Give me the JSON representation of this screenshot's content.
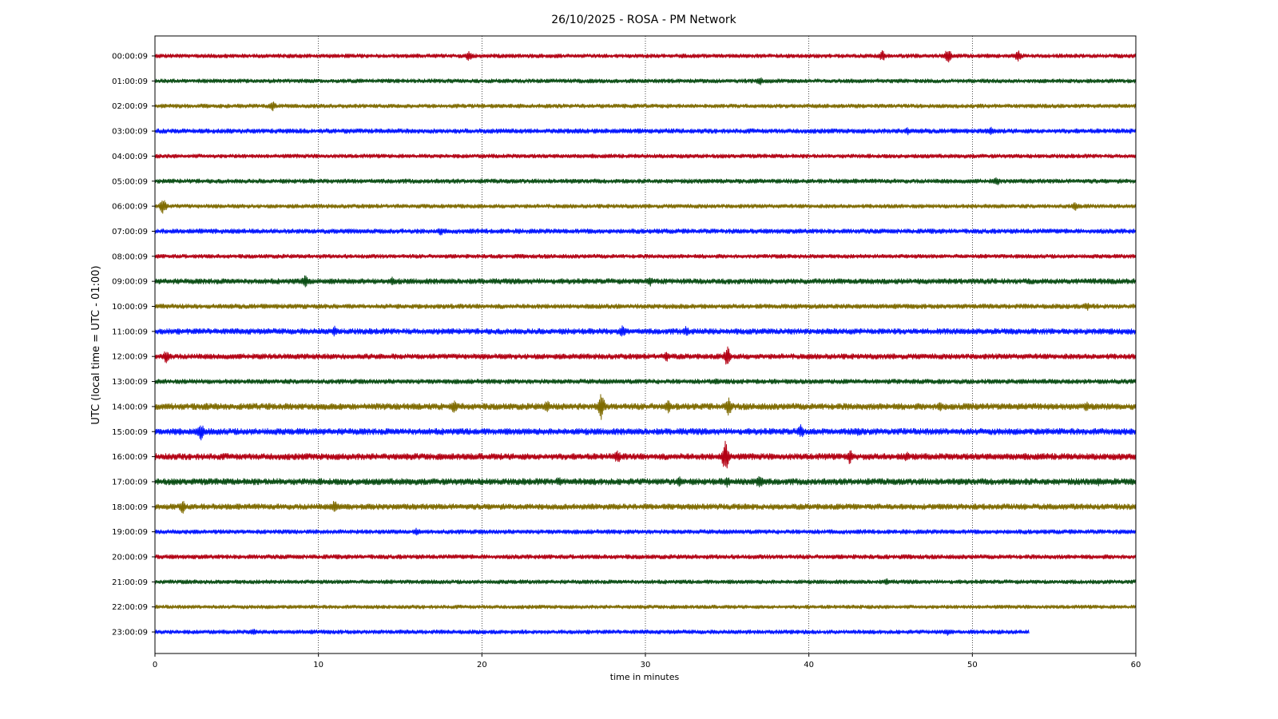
{
  "chart_data": {
    "type": "line",
    "title": "26/10/2025 - ROSA - PM Network",
    "xlabel": "time in minutes",
    "ylabel": "UTC (local time = UTC - 01:00)",
    "xlim": [
      0,
      60
    ],
    "x_ticks": [
      "0",
      "10",
      "20",
      "30",
      "40",
      "50",
      "60"
    ],
    "grid": "vertical dotted lines at each 10 minutes",
    "colors": [
      "#b30013",
      "#0a4d14",
      "#7f6b00",
      "#0014ff"
    ],
    "series": [
      {
        "name": "00:00:09",
        "color": "#b30013",
        "end_minute": 60,
        "amplitude": 0.13,
        "events": [
          [
            19.2,
            0.35
          ],
          [
            44.5,
            0.4
          ],
          [
            48.5,
            0.55
          ],
          [
            52.8,
            0.4
          ]
        ]
      },
      {
        "name": "01:00:09",
        "color": "#0a4d14",
        "end_minute": 60,
        "amplitude": 0.13,
        "events": [
          [
            37.0,
            0.3
          ]
        ]
      },
      {
        "name": "02:00:09",
        "color": "#7f6b00",
        "end_minute": 60,
        "amplitude": 0.13,
        "events": [
          [
            7.2,
            0.35
          ]
        ]
      },
      {
        "name": "03:00:09",
        "color": "#0014ff",
        "end_minute": 60,
        "amplitude": 0.15,
        "events": [
          [
            46.0,
            0.3
          ],
          [
            51.2,
            0.3
          ]
        ]
      },
      {
        "name": "04:00:09",
        "color": "#b30013",
        "end_minute": 60,
        "amplitude": 0.13,
        "events": []
      },
      {
        "name": "05:00:09",
        "color": "#0a4d14",
        "end_minute": 60,
        "amplitude": 0.14,
        "events": [
          [
            51.5,
            0.3
          ]
        ]
      },
      {
        "name": "06:00:09",
        "color": "#7f6b00",
        "end_minute": 60,
        "amplitude": 0.13,
        "events": [
          [
            0.5,
            0.55
          ],
          [
            56.3,
            0.3
          ]
        ]
      },
      {
        "name": "07:00:09",
        "color": "#0014ff",
        "end_minute": 60,
        "amplitude": 0.15,
        "events": [
          [
            17.5,
            0.3
          ]
        ]
      },
      {
        "name": "08:00:09",
        "color": "#b30013",
        "end_minute": 60,
        "amplitude": 0.13,
        "events": []
      },
      {
        "name": "09:00:09",
        "color": "#0a4d14",
        "end_minute": 60,
        "amplitude": 0.17,
        "events": [
          [
            9.2,
            0.45
          ],
          [
            14.5,
            0.3
          ],
          [
            30.3,
            0.35
          ]
        ]
      },
      {
        "name": "10:00:09",
        "color": "#7f6b00",
        "end_minute": 60,
        "amplitude": 0.15,
        "events": [
          [
            57.0,
            0.3
          ]
        ]
      },
      {
        "name": "11:00:09",
        "color": "#0014ff",
        "end_minute": 60,
        "amplitude": 0.18,
        "events": [
          [
            11.0,
            0.35
          ],
          [
            28.6,
            0.4
          ],
          [
            32.5,
            0.35
          ]
        ]
      },
      {
        "name": "12:00:09",
        "color": "#b30013",
        "end_minute": 60,
        "amplitude": 0.17,
        "events": [
          [
            0.7,
            0.45
          ],
          [
            31.3,
            0.35
          ],
          [
            35.0,
            0.7
          ]
        ]
      },
      {
        "name": "13:00:09",
        "color": "#0a4d14",
        "end_minute": 60,
        "amplitude": 0.15,
        "events": [
          [
            34.3,
            0.3
          ]
        ]
      },
      {
        "name": "14:00:09",
        "color": "#7f6b00",
        "end_minute": 60,
        "amplitude": 0.2,
        "events": [
          [
            18.3,
            0.45
          ],
          [
            24.0,
            0.45
          ],
          [
            27.3,
            0.85
          ],
          [
            31.4,
            0.45
          ],
          [
            35.1,
            0.6
          ],
          [
            48.0,
            0.4
          ],
          [
            57.0,
            0.35
          ]
        ]
      },
      {
        "name": "15:00:09",
        "color": "#0014ff",
        "end_minute": 60,
        "amplitude": 0.2,
        "events": [
          [
            2.8,
            0.6
          ],
          [
            39.5,
            0.5
          ],
          [
            43.0,
            0.35
          ]
        ]
      },
      {
        "name": "16:00:09",
        "color": "#b30013",
        "end_minute": 60,
        "amplitude": 0.2,
        "events": [
          [
            28.3,
            0.45
          ],
          [
            34.9,
            1.1
          ],
          [
            42.5,
            0.5
          ],
          [
            46.0,
            0.35
          ]
        ]
      },
      {
        "name": "17:00:09",
        "color": "#0a4d14",
        "end_minute": 60,
        "amplitude": 0.2,
        "events": [
          [
            24.7,
            0.35
          ],
          [
            32.1,
            0.35
          ],
          [
            35.0,
            0.4
          ],
          [
            37.0,
            0.55
          ],
          [
            57.7,
            0.3
          ]
        ]
      },
      {
        "name": "18:00:09",
        "color": "#7f6b00",
        "end_minute": 60,
        "amplitude": 0.18,
        "events": [
          [
            1.7,
            0.45
          ],
          [
            11.0,
            0.5
          ]
        ]
      },
      {
        "name": "19:00:09",
        "color": "#0014ff",
        "end_minute": 60,
        "amplitude": 0.14,
        "events": [
          [
            16.0,
            0.25
          ]
        ]
      },
      {
        "name": "20:00:09",
        "color": "#b30013",
        "end_minute": 60,
        "amplitude": 0.14,
        "events": []
      },
      {
        "name": "21:00:09",
        "color": "#0a4d14",
        "end_minute": 60,
        "amplitude": 0.13,
        "events": [
          [
            44.8,
            0.25
          ]
        ]
      },
      {
        "name": "22:00:09",
        "color": "#7f6b00",
        "end_minute": 60,
        "amplitude": 0.12,
        "events": []
      },
      {
        "name": "23:00:09",
        "color": "#0014ff",
        "end_minute": 53.5,
        "amplitude": 0.13,
        "events": [
          [
            6.0,
            0.25
          ],
          [
            48.5,
            0.25
          ]
        ]
      }
    ]
  }
}
